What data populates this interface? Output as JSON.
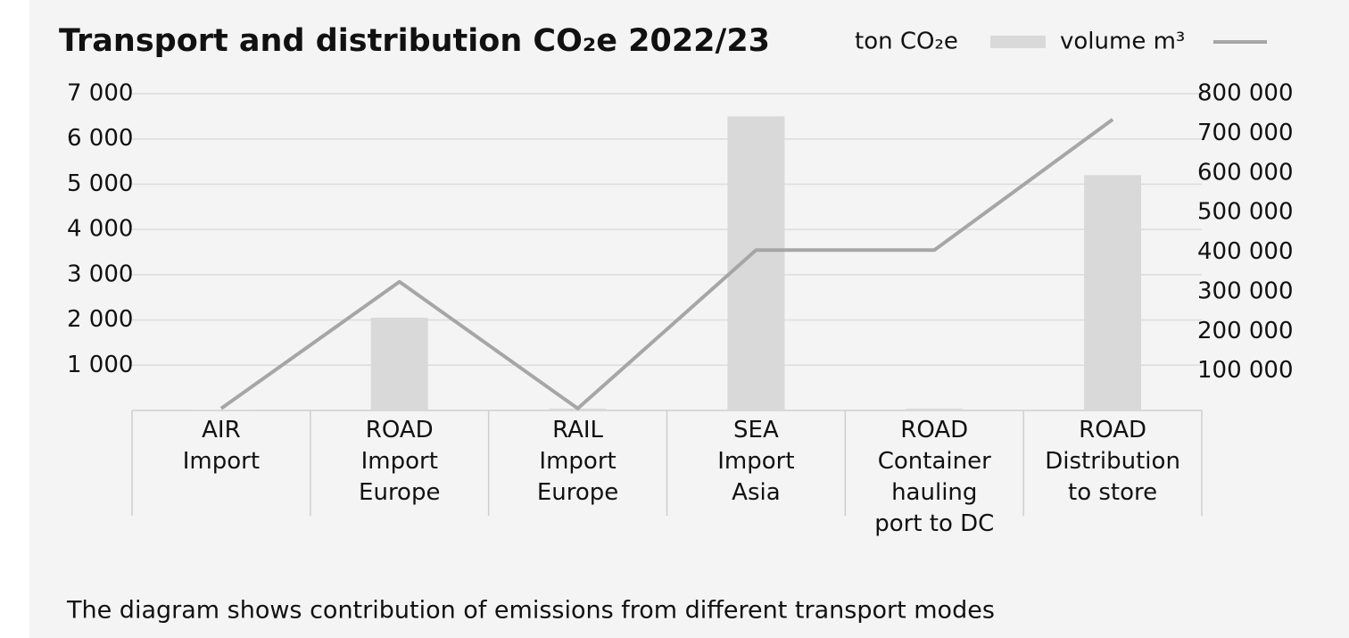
{
  "chart_data": {
    "type": "bar-line",
    "title": "Transport and distribution CO₂e 2022/23",
    "footnote": "The diagram shows contribution of emissions from different transport modes",
    "categories": [
      "AIR\nImport",
      "ROAD\nImport\nEurope",
      "RAIL\nImport\nEurope",
      "SEA\nImport\nAsia",
      "ROAD\nContainer\nhauling\nport to DC",
      "ROAD\nDistribution\nto store"
    ],
    "series": [
      {
        "name": "ton CO₂e",
        "type": "bar",
        "color": "#d9d9d9",
        "values": [
          5,
          2050,
          40,
          6500,
          40,
          5200
        ]
      },
      {
        "name": "volume m³",
        "type": "line",
        "axis": "y2",
        "color": "#a6a6a6",
        "values": [
          5000,
          325000,
          5000,
          405000,
          405000,
          735000
        ]
      }
    ],
    "ylim": [
      0,
      7000
    ],
    "yticks": [
      {
        "value": 1000,
        "label": "1 000"
      },
      {
        "value": 2000,
        "label": "2 000"
      },
      {
        "value": 3000,
        "label": "3 000"
      },
      {
        "value": 4000,
        "label": "4 000"
      },
      {
        "value": 5000,
        "label": "5 000"
      },
      {
        "value": 6000,
        "label": "6 000"
      },
      {
        "value": 7000,
        "label": "7 000"
      }
    ],
    "y2lim": [
      0,
      800000
    ],
    "y2ticks": [
      {
        "value": 100000,
        "label": "100 000"
      },
      {
        "value": 200000,
        "label": "200 000"
      },
      {
        "value": 300000,
        "label": "300 000"
      },
      {
        "value": 400000,
        "label": "400 000"
      },
      {
        "value": 500000,
        "label": "500 000"
      },
      {
        "value": 600000,
        "label": "600 000"
      },
      {
        "value": 700000,
        "label": "700 000"
      },
      {
        "value": 800000,
        "label": "800 000"
      }
    ],
    "grid": true
  }
}
